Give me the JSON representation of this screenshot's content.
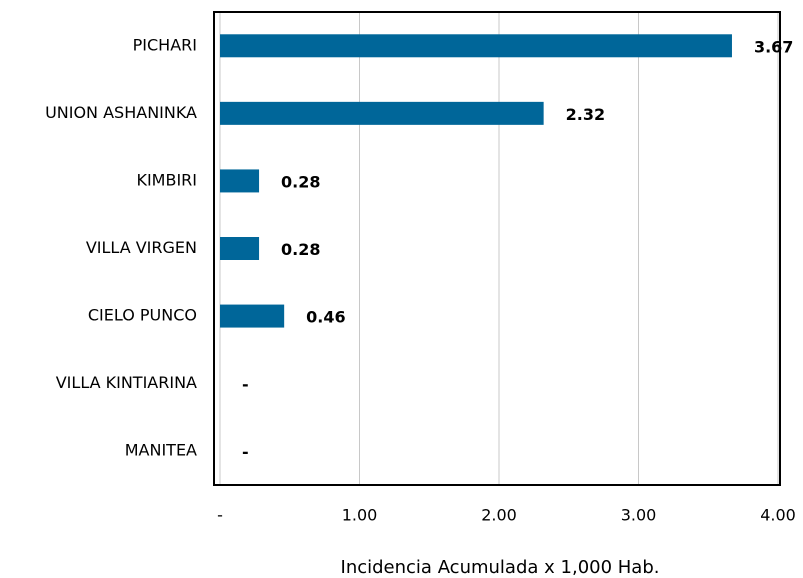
{
  "chart_data": {
    "type": "barh",
    "categories": [
      "PICHARI",
      "UNION ASHANINKA",
      "KIMBIRI",
      "VILLA VIRGEN",
      "CIELO PUNCO",
      "VILLA KINTIARINA",
      "MANITEA"
    ],
    "values": [
      3.67,
      2.32,
      0.28,
      0.28,
      0.46,
      0,
      0
    ],
    "value_labels": [
      "3.67",
      "2.32",
      "0.28",
      "0.28",
      "0.46",
      "-",
      "-"
    ],
    "color": "#006699",
    "xlabel": "Incidencia Acumulada x 1,000 Hab.",
    "xlim": [
      0,
      4
    ],
    "xticks": [
      {
        "value": 0,
        "label": "-"
      },
      {
        "value": 1,
        "label": "1.00"
      },
      {
        "value": 2,
        "label": "2.00"
      },
      {
        "value": 3,
        "label": "3.00"
      },
      {
        "value": 4,
        "label": "4.00"
      }
    ],
    "grid": true
  }
}
